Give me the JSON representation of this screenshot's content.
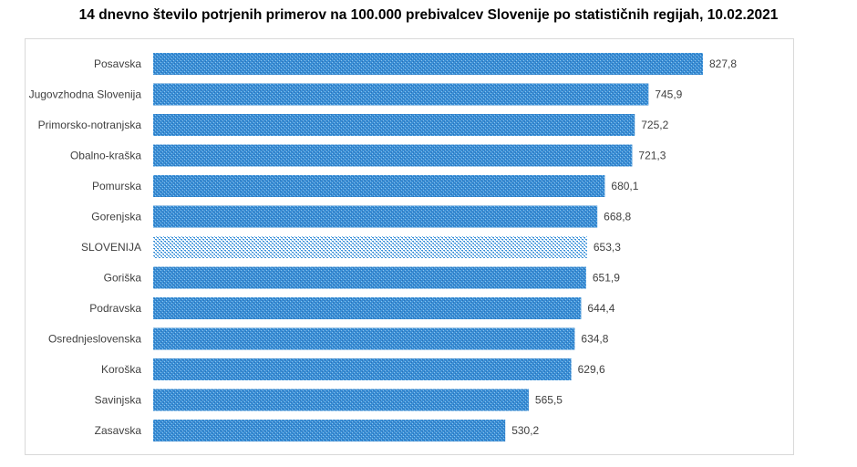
{
  "chart_data": {
    "type": "bar",
    "orientation": "horizontal",
    "title": "14 dnevno število potrjenih primerov na 100.000 prebivalcev Slovenije po statističnih regijah, 10.02.2021",
    "categories": [
      "Posavska",
      "Jugovzhodna Slovenija",
      "Primorsko-notranjska",
      "Obalno-kraška",
      "Pomurska",
      "Gorenjska",
      "SLOVENIJA",
      "Goriška",
      "Podravska",
      "Osrednjeslovenska",
      "Koroška",
      "Savinjska",
      "Zasavska"
    ],
    "values": [
      827.8,
      745.9,
      725.2,
      721.3,
      680.1,
      668.8,
      653.3,
      651.9,
      644.4,
      634.8,
      629.6,
      565.5,
      530.2
    ],
    "value_labels": [
      "827,8",
      "745,9",
      "725,2",
      "721,3",
      "680,1",
      "668,8",
      "653,3",
      "651,9",
      "644,4",
      "634,8",
      "629,6",
      "565,5",
      "530,2"
    ],
    "highlight": "SLOVENIJA",
    "xlim": [
      0,
      827.8
    ],
    "grid": false,
    "legend": "none",
    "colors": {
      "bar": "#3a8fd6",
      "bar_dark": "#2f6fb3",
      "highlight": "#6fb2ea",
      "text": "#404040"
    }
  }
}
